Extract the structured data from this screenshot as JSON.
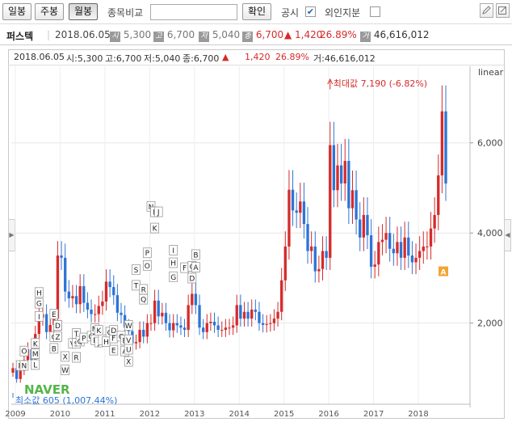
{
  "toolbar": {
    "daily": "일봉",
    "weekly": "주봉",
    "monthly": "월봉",
    "compare_label": "종목비교",
    "compare_value": "",
    "confirm": "확인",
    "disclosure_label": "공시",
    "disclosure_checked": "✔",
    "foreign_label": "외인지분",
    "foreign_checked": "",
    "icon1": "pencil-icon",
    "icon2": "edit-icon"
  },
  "info": {
    "stock_name": "퍼스텍",
    "date": "2018.06.05",
    "open_badge": "시",
    "open": "5,300",
    "high_badge": "고",
    "high": "6,700",
    "low_badge": "저",
    "low": "5,040",
    "close_badge": "종",
    "close": "6,700",
    "change": "▲ 1,420",
    "change_pct": "26.89%",
    "volume_badge": "거",
    "volume": "46,616,012"
  },
  "chart_head": {
    "date": "2018.06.05",
    "open": "시:5,300",
    "high": "고:6,700",
    "low": "저:5,040",
    "close": "종:6,700",
    "arrow": "▲",
    "change": "1,420",
    "change_pct": "26.89%",
    "volume": "거:46,616,012"
  },
  "chart_data": {
    "type": "candlestick",
    "scale": "linear",
    "ylim": [
      200,
      7700
    ],
    "y_ticks": [
      "2,000",
      "4,000",
      "6,000"
    ],
    "y_tick_values": [
      2000,
      4000,
      6000
    ],
    "x_tick_labels": [
      "2009",
      "2010",
      "2011",
      "2012",
      "2013",
      "2014",
      "2015",
      "2016",
      "2017",
      "2018"
    ],
    "x_tick_index": [
      0,
      12,
      24,
      36,
      48,
      60,
      72,
      84,
      96,
      108
    ],
    "max_label": "최대값 7,190 (-6.82%)",
    "min_label": "최소값 605 (1,007.44%)",
    "max_index": 85,
    "max_value": 7190,
    "min_index": 0,
    "min_value": 605,
    "up_color": "#d62b2b",
    "down_color": "#2d74d6",
    "closes": [
      1000,
      760,
      940,
      1180,
      1420,
      1180,
      1760,
      2120,
      2200,
      1800,
      1960,
      2100,
      3500,
      3450,
      2700,
      2550,
      2600,
      2420,
      2820,
      2450,
      2300,
      2200,
      2200,
      2380,
      2480,
      2920,
      2800,
      2620,
      2230,
      2180,
      1900,
      1820,
      1550,
      1580,
      1850,
      1700,
      2000,
      2000,
      2500,
      2150,
      2230,
      2000,
      1840,
      2000,
      1950,
      1900,
      1850,
      2400,
      2650,
      2400,
      1900,
      1800,
      2000,
      2030,
      1950,
      1850,
      1850,
      1900,
      1900,
      1950,
      2400,
      2100,
      2250,
      2100,
      2300,
      2250,
      2000,
      1960,
      1980,
      2000,
      2100,
      2250,
      2950,
      3700,
      4960,
      4500,
      4450,
      4700,
      4200,
      3600,
      3700,
      3150,
      3200,
      3600,
      3450,
      5950,
      4950,
      5500,
      5100,
      5600,
      4550,
      4950,
      4300,
      3900,
      4400,
      3950,
      3250,
      3300,
      3800,
      3850,
      4000,
      3650,
      3550,
      3800,
      3450,
      3900,
      3500,
      3350,
      3450,
      3600,
      3700,
      3700,
      4100,
      4400,
      5280,
      6700,
      5100
    ],
    "markers": [
      {
        "label": "P",
        "index": 2,
        "value": 1060,
        "above": false
      },
      {
        "label": "N",
        "index": 3,
        "value": 1060,
        "above": false
      },
      {
        "label": "O",
        "index": 3,
        "value": 1380,
        "above": false
      },
      {
        "label": "K",
        "index": 6,
        "value": 1550,
        "above": false
      },
      {
        "label": "M",
        "index": 6,
        "value": 1320,
        "above": false
      },
      {
        "label": "L",
        "index": 6,
        "value": 1080,
        "above": false
      },
      {
        "label": "I",
        "index": 7,
        "value": 2150,
        "above": false
      },
      {
        "label": "G",
        "index": 7,
        "value": 2440,
        "above": false
      },
      {
        "label": "H",
        "index": 7,
        "value": 2680,
        "above": false
      },
      {
        "label": "E",
        "index": 11,
        "value": 2200,
        "above": false
      },
      {
        "label": "Y",
        "index": 12,
        "value": 1950,
        "above": false
      },
      {
        "label": "D",
        "index": 12,
        "value": 1950,
        "above": false
      },
      {
        "label": "C",
        "index": 11,
        "value": 1700,
        "above": false
      },
      {
        "label": "Z",
        "index": 12,
        "value": 1700,
        "above": false
      },
      {
        "label": "B",
        "index": 11,
        "value": 1440,
        "above": false
      },
      {
        "label": "X",
        "index": 14,
        "value": 1260,
        "above": false
      },
      {
        "label": "W",
        "index": 14,
        "value": 960,
        "above": false
      },
      {
        "label": "V",
        "index": 16,
        "value": 1550,
        "above": false
      },
      {
        "label": "T",
        "index": 17,
        "value": 1770,
        "above": false
      },
      {
        "label": "S",
        "index": 17,
        "value": 1550,
        "above": false
      },
      {
        "label": "R",
        "index": 17,
        "value": 1240,
        "above": false
      },
      {
        "label": "Q",
        "index": 18,
        "value": 1600,
        "above": false
      },
      {
        "label": "P",
        "index": 19,
        "value": 1670,
        "above": false
      },
      {
        "label": "O",
        "index": 21,
        "value": 1710,
        "above": false
      },
      {
        "label": "N",
        "index": 22,
        "value": 1710,
        "above": false
      },
      {
        "label": "M",
        "index": 22,
        "value": 1880,
        "above": false
      },
      {
        "label": "L",
        "index": 22,
        "value": 1630,
        "above": false
      },
      {
        "label": "K",
        "index": 23,
        "value": 1840,
        "above": false
      },
      {
        "label": "J",
        "index": 23,
        "value": 1580,
        "above": false
      },
      {
        "label": "I",
        "index": 24,
        "value": 1630,
        "above": false
      },
      {
        "label": "H",
        "index": 25,
        "value": 1590,
        "above": false
      },
      {
        "label": "G",
        "index": 26,
        "value": 1800,
        "above": false
      },
      {
        "label": "F",
        "index": 27,
        "value": 1670,
        "above": false
      },
      {
        "label": "D",
        "index": 27,
        "value": 1840,
        "above": false
      },
      {
        "label": "E",
        "index": 27,
        "value": 1400,
        "above": false
      },
      {
        "label": "C",
        "index": 29,
        "value": 1710,
        "above": false
      },
      {
        "label": "B",
        "index": 30,
        "value": 1620,
        "above": false
      },
      {
        "label": "A",
        "index": 30,
        "value": 1380,
        "above": false
      },
      {
        "label": "W",
        "index": 31,
        "value": 1950,
        "above": false
      },
      {
        "label": "V",
        "index": 31,
        "value": 1630,
        "above": false
      },
      {
        "label": "U",
        "index": 31,
        "value": 1420,
        "above": false
      },
      {
        "label": "X",
        "index": 31,
        "value": 1150,
        "above": false
      },
      {
        "label": "T",
        "index": 33,
        "value": 2840,
        "above": false
      },
      {
        "label": "S",
        "index": 33,
        "value": 3190,
        "above": false
      },
      {
        "label": "R",
        "index": 35,
        "value": 2750,
        "above": false
      },
      {
        "label": "Q",
        "index": 35,
        "value": 2530,
        "above": false
      },
      {
        "label": "P",
        "index": 36,
        "value": 3560,
        "above": false
      },
      {
        "label": "O",
        "index": 36,
        "value": 3280,
        "above": false
      },
      {
        "label": "N",
        "index": 37,
        "value": 4590,
        "above": false
      },
      {
        "label": "M",
        "index": 38,
        "value": 4470,
        "above": false
      },
      {
        "label": "L",
        "index": 38,
        "value": 4470,
        "above": false
      },
      {
        "label": "K",
        "index": 38,
        "value": 4110,
        "above": false
      },
      {
        "label": "J",
        "index": 39,
        "value": 4470,
        "above": false
      },
      {
        "label": "I",
        "index": 43,
        "value": 3620,
        "above": false
      },
      {
        "label": "H",
        "index": 43,
        "value": 3340,
        "above": false
      },
      {
        "label": "G",
        "index": 43,
        "value": 3030,
        "above": false
      },
      {
        "label": "F",
        "index": 46,
        "value": 3230,
        "above": false
      },
      {
        "label": "E",
        "index": 48,
        "value": 3260,
        "above": false
      },
      {
        "label": "C",
        "index": 48,
        "value": 3260,
        "above": false
      },
      {
        "label": "D",
        "index": 48,
        "value": 3000,
        "above": false
      },
      {
        "label": "B",
        "index": 49,
        "value": 3520,
        "above": false
      },
      {
        "label": "A",
        "index": 49,
        "value": 3240,
        "above": false
      }
    ]
  },
  "branding": "NAVER"
}
